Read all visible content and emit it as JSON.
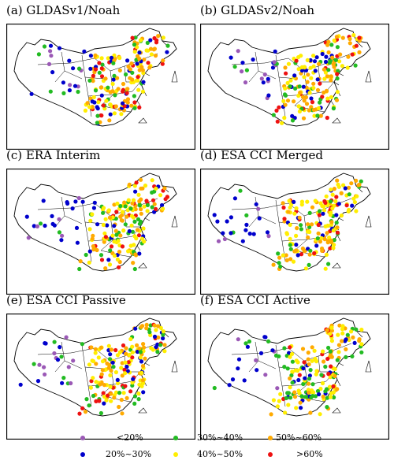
{
  "panels": [
    {
      "id": "a",
      "title": "(a) GLDASv1/Noah"
    },
    {
      "id": "b",
      "title": "(b) GLDASv2/Noah"
    },
    {
      "id": "c",
      "title": "(c) ERA Interim"
    },
    {
      "id": "d",
      "title": "(d) ESA CCI Merged"
    },
    {
      "id": "e",
      "title": "(e) ESA CCI Passive"
    },
    {
      "id": "f",
      "title": "(f) ESA CCI Active"
    }
  ],
  "legend": [
    {
      "label": "<20%",
      "color": "#9b59b6"
    },
    {
      "label": "20%~30%",
      "color": "#0000cc"
    },
    {
      "label": "30%~40%",
      "color": "#22bb22"
    },
    {
      "label": "40%~50%",
      "color": "#ffee00"
    },
    {
      "label": "50%~60%",
      "color": "#ffaa00"
    },
    {
      "label": ">60%",
      "color": "#ee1111"
    }
  ]
}
